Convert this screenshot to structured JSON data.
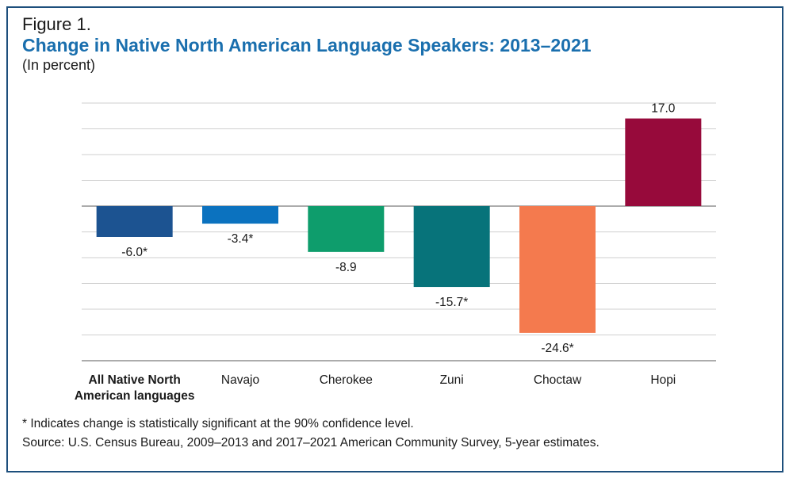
{
  "figure_label": "Figure 1.",
  "chart_data": {
    "type": "bar",
    "title": "Change in Native North American Language Speakers: 2013–2021",
    "subtitle": "(In percent)",
    "xlabel": "",
    "ylabel": "",
    "ylim": [
      -30,
      20
    ],
    "grid": true,
    "categories": [
      "All Native North American languages",
      "Navajo",
      "Cherokee",
      "Zuni",
      "Choctaw",
      "Hopi"
    ],
    "category_lines": [
      [
        "All Native North",
        "American languages"
      ],
      [
        "Navajo"
      ],
      [
        "Cherokee"
      ],
      [
        "Zuni"
      ],
      [
        "Choctaw"
      ],
      [
        "Hopi"
      ]
    ],
    "values": [
      -6.0,
      -3.4,
      -8.9,
      -15.7,
      -24.6,
      17.0
    ],
    "data_labels": [
      "-6.0*",
      "-3.4*",
      "-8.9",
      "-15.7*",
      "-24.6*",
      "17.0"
    ],
    "colors": [
      "#1c5391",
      "#0b72bf",
      "#0e9d6c",
      "#07737a",
      "#f47a4e",
      "#970a3b"
    ]
  },
  "footnotes": {
    "significance": "* Indicates change is statistically significant at the 90% confidence level.",
    "source": "Source: U.S. Census Bureau, 2009–2013 and 2017–2021 American Community Survey, 5-year estimates."
  }
}
